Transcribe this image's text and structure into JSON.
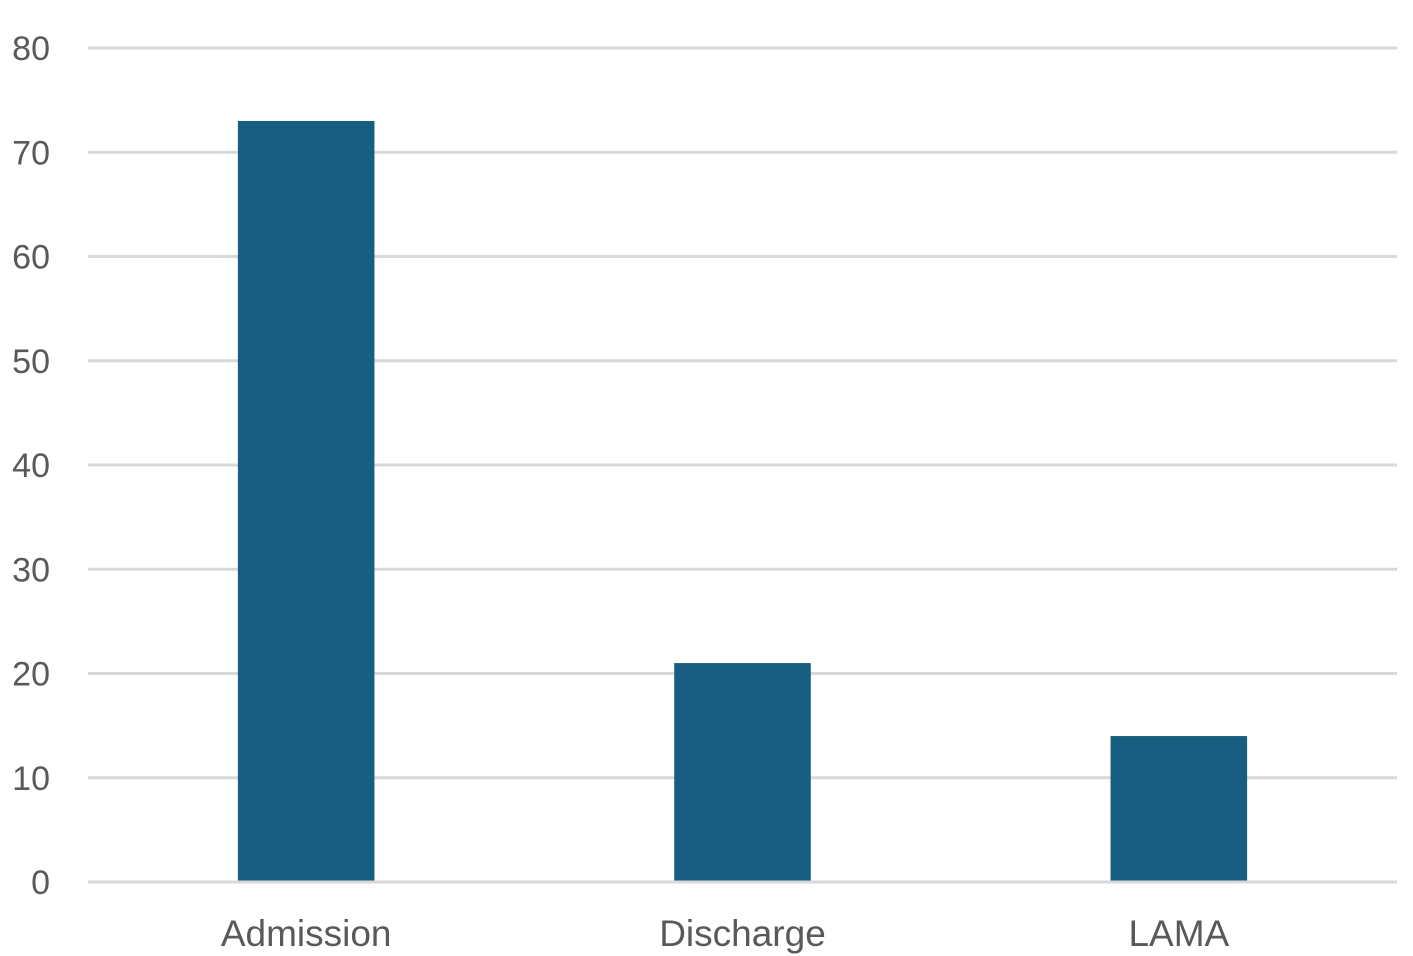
{
  "chart_data": {
    "type": "bar",
    "title": "",
    "xlabel": "",
    "ylabel": "",
    "categories": [
      "Admission",
      "Discharge",
      "LAMA"
    ],
    "values": [
      73,
      21,
      14
    ],
    "ylim": [
      0,
      80
    ],
    "yticks": [
      "0",
      "10",
      "20",
      "30",
      "40",
      "50",
      "60",
      "70",
      "80"
    ],
    "grid": true,
    "legend": "none",
    "bar_color": "#175e80",
    "grid_color": "#d9d9d9",
    "label_color": "#595959"
  }
}
